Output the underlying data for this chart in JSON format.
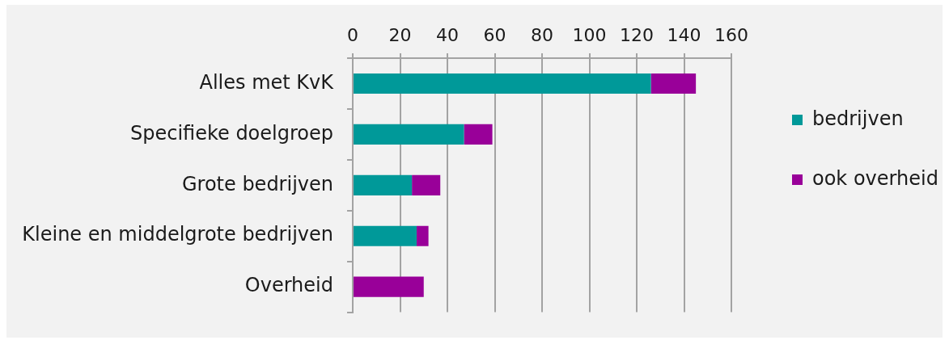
{
  "chart_data": {
    "type": "bar",
    "orientation": "horizontal",
    "stacked": true,
    "categories": [
      "Alles met KvK",
      "Specifieke doelgroep",
      "Grote bedrijven",
      "Kleine en middelgrote bedrijven",
      "Overheid"
    ],
    "series": [
      {
        "name": "bedrijven",
        "color": "#009999",
        "values": [
          126,
          47,
          25,
          27,
          0
        ]
      },
      {
        "name": "ook overheid",
        "color": "#990099",
        "values": [
          19,
          12,
          12,
          5,
          30
        ]
      }
    ],
    "xlim": [
      0,
      160
    ],
    "xticks": [
      0,
      20,
      40,
      60,
      80,
      100,
      120,
      140,
      160
    ],
    "grid": "x",
    "legend": "right"
  }
}
